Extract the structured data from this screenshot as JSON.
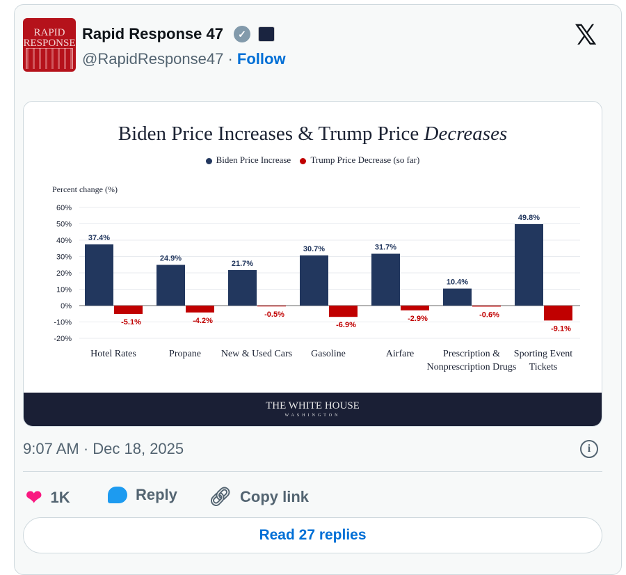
{
  "author": {
    "name": "Rapid Response 47",
    "handle": "@RapidResponse47",
    "follow_label": "Follow",
    "avatar_text": "RAPID RESPONSE"
  },
  "chart_image": {
    "footer_title": "THE WHITE HOUSE",
    "footer_subtitle": "WASHINGTON"
  },
  "chart_data": {
    "type": "bar",
    "title": "Biden Price Increases & Trump Price ",
    "title_italic": "Decreases",
    "ylabel": "Percent change (%)",
    "ylim": [
      -20,
      60
    ],
    "yticks": [
      "60%",
      "50%",
      "40%",
      "30%",
      "20%",
      "10%",
      "0%",
      "-10%",
      "-20%"
    ],
    "ytick_values": [
      60,
      50,
      40,
      30,
      20,
      10,
      0,
      -10,
      -20
    ],
    "grid": true,
    "legend_position": "top-center",
    "categories": [
      "Hotel Rates",
      "Propane",
      "New & Used Cars",
      "Gasoline",
      "Airfare",
      "Prescription & Nonprescription Drugs",
      "Sporting Event Tickets"
    ],
    "category_lines": [
      [
        "Hotel Rates"
      ],
      [
        "Propane"
      ],
      [
        "New & Used Cars"
      ],
      [
        "Gasoline"
      ],
      [
        "Airfare"
      ],
      [
        "Prescription &",
        "Nonprescription Drugs"
      ],
      [
        "Sporting Event",
        "Tickets"
      ]
    ],
    "series": [
      {
        "name": "Biden Price Increase",
        "color": "#22375e",
        "values": [
          37.4,
          24.9,
          21.7,
          30.7,
          31.7,
          10.4,
          49.8
        ],
        "labels": [
          "37.4%",
          "24.9%",
          "21.7%",
          "30.7%",
          "31.7%",
          "10.4%",
          "49.8%"
        ]
      },
      {
        "name": "Trump Price Decrease (so far)",
        "color": "#c00000",
        "values": [
          -5.1,
          -4.2,
          -0.5,
          -6.9,
          -2.9,
          -0.6,
          -9.1
        ],
        "labels": [
          "-5.1%",
          "-4.2%",
          "-0.5%",
          "-6.9%",
          "-2.9%",
          "-0.6%",
          "-9.1%"
        ]
      }
    ]
  },
  "timestamp": "9:07 AM · Dec 18, 2025",
  "actions": {
    "likes": "1K",
    "reply": "Reply",
    "copy_link": "Copy link"
  },
  "read_replies": "Read 27 replies"
}
